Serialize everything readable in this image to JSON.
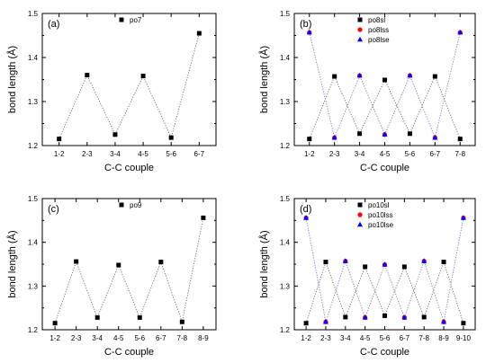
{
  "chart_data": [
    {
      "type": "scatter",
      "panel_label": "(a)",
      "xlabel": "C-C couple",
      "ylabel": "bond length (Å)",
      "ylim": [
        1.2,
        1.5
      ],
      "yticks": [
        "1.2",
        "1.3",
        "1.4",
        "1.5"
      ],
      "categories": [
        "1-2",
        "2-3",
        "3-4",
        "4-5",
        "5-6",
        "6-7"
      ],
      "legend_position": "top-center",
      "series": [
        {
          "name": "po7",
          "marker": "square",
          "color": "#000000",
          "values": [
            1.215,
            1.36,
            1.225,
            1.358,
            1.218,
            1.455
          ]
        }
      ]
    },
    {
      "type": "scatter",
      "panel_label": "(b)",
      "xlabel": "C-C couple",
      "ylabel": "bond length (Å)",
      "ylim": [
        1.2,
        1.5
      ],
      "yticks": [
        "1.2",
        "1.3",
        "1.4",
        "1.5"
      ],
      "categories": [
        "1-2",
        "2-3",
        "3-4",
        "4-5",
        "5-6",
        "6-7",
        "7-8"
      ],
      "legend_position": "top-center",
      "series": [
        {
          "name": "po8sl",
          "marker": "square",
          "color": "#000000",
          "values": [
            1.215,
            1.357,
            1.227,
            1.349,
            1.227,
            1.357,
            1.215
          ]
        },
        {
          "name": "po8lss",
          "marker": "circle",
          "color": "#ff0000",
          "values": [
            1.457,
            1.218,
            1.359,
            1.225,
            1.359,
            1.218,
            1.457
          ]
        },
        {
          "name": "po8lse",
          "marker": "triangle",
          "color": "#0000ff",
          "values": [
            1.457,
            1.218,
            1.359,
            1.225,
            1.359,
            1.218,
            1.457
          ]
        }
      ]
    },
    {
      "type": "scatter",
      "panel_label": "(c)",
      "xlabel": "C-C couple",
      "ylabel": "bond length (Å)",
      "ylim": [
        1.2,
        1.5
      ],
      "yticks": [
        "1.2",
        "1.3",
        "1.4",
        "1.5"
      ],
      "categories": [
        "1-2",
        "2-3",
        "3-4",
        "4-5",
        "5-6",
        "6-7",
        "7-8",
        "8-9"
      ],
      "legend_position": "top-center",
      "series": [
        {
          "name": "po9",
          "marker": "square",
          "color": "#000000",
          "values": [
            1.215,
            1.356,
            1.228,
            1.348,
            1.228,
            1.355,
            1.218,
            1.456
          ]
        }
      ]
    },
    {
      "type": "scatter",
      "panel_label": "(d)",
      "xlabel": "C-C couple",
      "ylabel": "bond length (Å)",
      "ylim": [
        1.2,
        1.5
      ],
      "yticks": [
        "1.2",
        "1.3",
        "1.4",
        "1.5"
      ],
      "categories": [
        "1-2",
        "2-3",
        "3-4",
        "4-5",
        "5-6",
        "6-7",
        "7-8",
        "8-9",
        "9-10"
      ],
      "legend_position": "top-center",
      "series": [
        {
          "name": "po10sl",
          "marker": "square",
          "color": "#000000",
          "values": [
            1.215,
            1.355,
            1.229,
            1.344,
            1.232,
            1.344,
            1.229,
            1.355,
            1.215
          ]
        },
        {
          "name": "po10lss",
          "marker": "circle",
          "color": "#ff0000",
          "values": [
            1.456,
            1.218,
            1.357,
            1.228,
            1.349,
            1.228,
            1.357,
            1.218,
            1.456
          ]
        },
        {
          "name": "po10lse",
          "marker": "triangle",
          "color": "#0000ff",
          "values": [
            1.456,
            1.218,
            1.357,
            1.228,
            1.349,
            1.228,
            1.357,
            1.218,
            1.456
          ]
        }
      ]
    }
  ]
}
